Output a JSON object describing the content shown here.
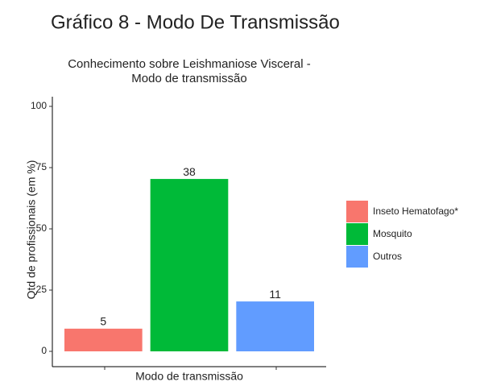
{
  "heading": "Gráfico 8 - Modo De Transmissão",
  "chart_data": {
    "type": "bar",
    "title": [
      "Conhecimento sobre Leishmaniose Visceral -",
      "Modo de transmissão"
    ],
    "x_label": "Modo de transmissão",
    "y_label": "Qtd de profissionais (em %)",
    "categories": [
      "Modo de transmissão"
    ],
    "series": [
      {
        "name": "Inseto Hematofago*",
        "color": "#f8766d",
        "values": [
          9.26
        ],
        "counts": [
          5
        ]
      },
      {
        "name": "Mosquito",
        "color": "#00ba38",
        "values": [
          70.37
        ],
        "counts": [
          38
        ]
      },
      {
        "name": "Outros",
        "color": "#619cff",
        "values": [
          20.37
        ],
        "counts": [
          11
        ]
      }
    ],
    "ylim": [
      0,
      100
    ],
    "yticks": [
      0,
      25,
      50,
      75,
      100
    ],
    "grid": false,
    "legend": "right"
  }
}
